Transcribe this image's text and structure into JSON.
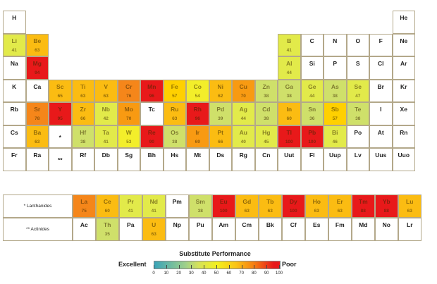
{
  "chart_data": {
    "type": "heatmap",
    "title": "Substitute Performance",
    "legend": {
      "low_label": "Excellent",
      "high_label": "Poor",
      "ticks": [
        "0",
        "10",
        "20",
        "30",
        "40",
        "50",
        "60",
        "70",
        "80",
        "90",
        "100"
      ],
      "range": [
        0,
        100
      ],
      "placement": "bottom-center"
    },
    "colors": {
      "green": "#cfe06a",
      "yellow": "#f3ee2a",
      "amber": "#fbbc12",
      "orange": "#f5861a",
      "red": "#e8191a"
    },
    "main_rows": [
      [
        {
          "s": "H"
        },
        null,
        null,
        null,
        null,
        null,
        null,
        null,
        null,
        null,
        null,
        null,
        null,
        null,
        null,
        null,
        null,
        {
          "s": "He"
        }
      ],
      [
        {
          "s": "Li",
          "v": 41
        },
        {
          "s": "Be",
          "v": 63
        },
        null,
        null,
        null,
        null,
        null,
        null,
        null,
        null,
        null,
        null,
        {
          "s": "B",
          "v": 41
        },
        {
          "s": "C"
        },
        {
          "s": "N"
        },
        {
          "s": "O"
        },
        {
          "s": "F"
        },
        {
          "s": "Ne"
        }
      ],
      [
        {
          "s": "Na"
        },
        {
          "s": "Mg",
          "v": 94
        },
        null,
        null,
        null,
        null,
        null,
        null,
        null,
        null,
        null,
        null,
        {
          "s": "Al",
          "v": 44
        },
        {
          "s": "Si"
        },
        {
          "s": "P"
        },
        {
          "s": "S"
        },
        {
          "s": "Cl"
        },
        {
          "s": "Ar"
        }
      ],
      [
        {
          "s": "K"
        },
        {
          "s": "Ca"
        },
        {
          "s": "Sc",
          "v": 65
        },
        {
          "s": "Ti",
          "v": 63
        },
        {
          "s": "V",
          "v": 63
        },
        {
          "s": "Cr",
          "v": 76
        },
        {
          "s": "Mn",
          "v": 96
        },
        {
          "s": "Fe",
          "v": 57
        },
        {
          "s": "Co",
          "v": 54
        },
        {
          "s": "Ni",
          "v": 62
        },
        {
          "s": "Cu",
          "v": 70
        },
        {
          "s": "Zn",
          "v": 38
        },
        {
          "s": "Ga",
          "v": 38
        },
        {
          "s": "Ge",
          "v": 44
        },
        {
          "s": "As",
          "v": 38
        },
        {
          "s": "Se",
          "v": 47
        },
        {
          "s": "Br"
        },
        {
          "s": "Kr"
        }
      ],
      [
        {
          "s": "Rb"
        },
        {
          "s": "Sr",
          "v": 78
        },
        {
          "s": "Y",
          "v": 95
        },
        {
          "s": "Zr",
          "v": 66
        },
        {
          "s": "Nb",
          "v": 42
        },
        {
          "s": "Mo",
          "v": 70
        },
        {
          "s": "Tc"
        },
        {
          "s": "Ru",
          "v": 63
        },
        {
          "s": "Rh",
          "v": 96
        },
        {
          "s": "Pd",
          "v": 39
        },
        {
          "s": "Ag",
          "v": 44
        },
        {
          "s": "Cd",
          "v": 38
        },
        {
          "s": "In",
          "v": 60
        },
        {
          "s": "Sn",
          "v": 36
        },
        {
          "s": "Sb",
          "v": 57
        },
        {
          "s": "Te",
          "v": 38
        },
        {
          "s": "I"
        },
        {
          "s": "Xe"
        }
      ],
      [
        {
          "s": "Cs"
        },
        {
          "s": "Ba",
          "v": 63
        },
        {
          "s": "*"
        },
        {
          "s": "Hf",
          "v": 38
        },
        {
          "s": "Ta",
          "v": 41
        },
        {
          "s": "W",
          "v": 53
        },
        {
          "s": "Re",
          "v": 90
        },
        {
          "s": "Os",
          "v": 38
        },
        {
          "s": "Ir",
          "v": 69
        },
        {
          "s": "Pt",
          "v": 66
        },
        {
          "s": "Au",
          "v": 40
        },
        {
          "s": "Hg",
          "v": 45
        },
        {
          "s": "Tl",
          "v": 100
        },
        {
          "s": "Pb",
          "v": 100
        },
        {
          "s": "Bi",
          "v": 46
        },
        {
          "s": "Po"
        },
        {
          "s": "At"
        },
        {
          "s": "Rn"
        }
      ],
      [
        {
          "s": "Fr"
        },
        {
          "s": "Ra"
        },
        {
          "s": "**"
        },
        {
          "s": "Rf"
        },
        {
          "s": "Db"
        },
        {
          "s": "Sg"
        },
        {
          "s": "Bh"
        },
        {
          "s": "Hs"
        },
        {
          "s": "Mt"
        },
        {
          "s": "Ds"
        },
        {
          "s": "Rg"
        },
        {
          "s": "Cn"
        },
        {
          "s": "Uut"
        },
        {
          "s": "Fl"
        },
        {
          "s": "Uup"
        },
        {
          "s": "Lv"
        },
        {
          "s": "Uus"
        },
        {
          "s": "Uuo"
        }
      ]
    ],
    "series_rows": [
      {
        "label": "* Lanthanides",
        "cells": [
          {
            "s": "La",
            "v": 75
          },
          {
            "s": "Ce",
            "v": 60
          },
          {
            "s": "Pr",
            "v": 41
          },
          {
            "s": "Nd",
            "v": 41
          },
          {
            "s": "Pm"
          },
          {
            "s": "Sm",
            "v": 38
          },
          {
            "s": "Eu",
            "v": 100
          },
          {
            "s": "Gd",
            "v": 63
          },
          {
            "s": "Tb",
            "v": 63
          },
          {
            "s": "Dy",
            "v": 100
          },
          {
            "s": "Ho",
            "v": 63
          },
          {
            "s": "Er",
            "v": 63
          },
          {
            "s": "Tm",
            "v": 88
          },
          {
            "s": "Yb",
            "v": 88
          },
          {
            "s": "Lu",
            "v": 63
          }
        ]
      },
      {
        "label": "** Actinides",
        "cells": [
          {
            "s": "Ac"
          },
          {
            "s": "Th",
            "v": 35
          },
          {
            "s": "Pa"
          },
          {
            "s": "U",
            "v": 63
          },
          {
            "s": "Np"
          },
          {
            "s": "Pu"
          },
          {
            "s": "Am"
          },
          {
            "s": "Cm"
          },
          {
            "s": "Bk"
          },
          {
            "s": "Cf"
          },
          {
            "s": "Es"
          },
          {
            "s": "Fm"
          },
          {
            "s": "Md"
          },
          {
            "s": "No"
          },
          {
            "s": "Lr"
          }
        ]
      }
    ]
  }
}
